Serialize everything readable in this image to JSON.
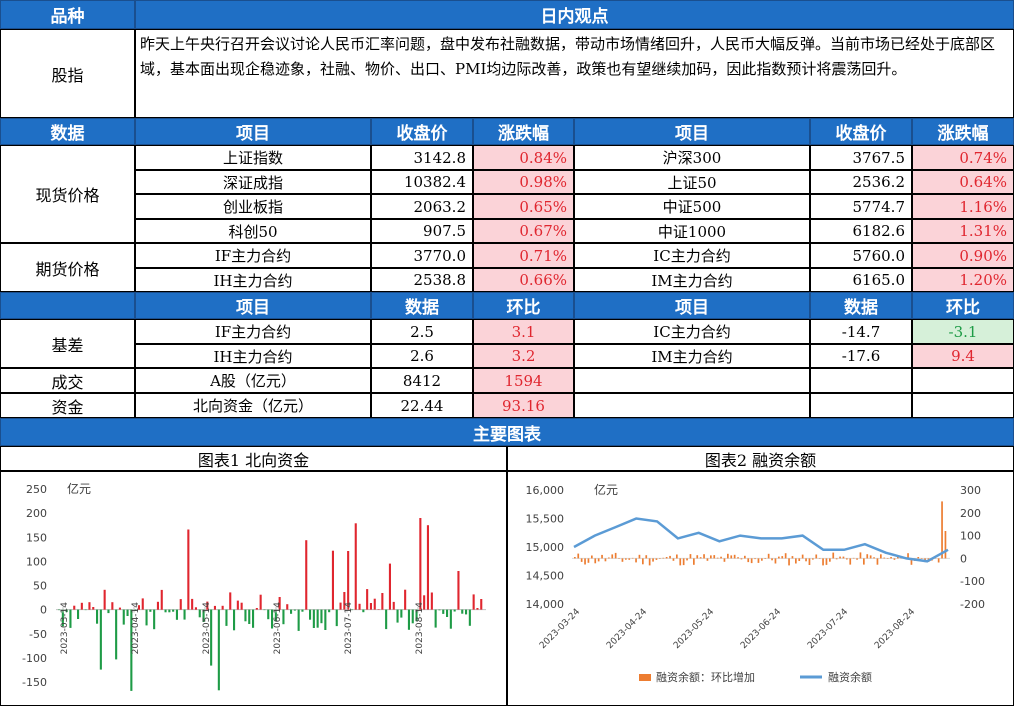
{
  "header": {
    "col1": "品种",
    "col2": "日内观点"
  },
  "index_row": {
    "label": "股指",
    "text": "昨天上午央行召开会议讨论人民币汇率问题，盘中发布社融数据，带动市场情绪回升，人民币大幅反弹。当前市场已经处于底部区域，基本面出现企稳迹象，社融、物价、出口、PMI均边际改善，政策也有望继续加码，因此指数预计将震荡回升。"
  },
  "price_header": {
    "data": "数据",
    "item": "项目",
    "close": "收盘价",
    "chg": "涨跌幅",
    "item2": "项目",
    "close2": "收盘价",
    "chg2": "涨跌幅"
  },
  "spot": {
    "label": "现货价格",
    "rows": [
      {
        "name": "上证指数",
        "close": "3142.8",
        "chg": "0.84%",
        "name2": "沪深300",
        "close2": "3767.5",
        "chg2": "0.74%"
      },
      {
        "name": "深证成指",
        "close": "10382.4",
        "chg": "0.98%",
        "name2": "上证50",
        "close2": "2536.2",
        "chg2": "0.64%"
      },
      {
        "name": "创业板指",
        "close": "2063.2",
        "chg": "0.65%",
        "name2": "中证500",
        "close2": "5774.7",
        "chg2": "1.16%"
      },
      {
        "name": "科创50",
        "close": "907.5",
        "chg": "0.67%",
        "name2": "中证1000",
        "close2": "6182.6",
        "chg2": "1.31%"
      }
    ]
  },
  "futures": {
    "label": "期货价格",
    "rows": [
      {
        "name": "IF主力合约",
        "close": "3770.0",
        "chg": "0.71%",
        "name2": "IC主力合约",
        "close2": "5760.0",
        "chg2": "0.90%"
      },
      {
        "name": "IH主力合约",
        "close": "2538.8",
        "chg": "0.66%",
        "name2": "IM主力合约",
        "close2": "6165.0",
        "chg2": "1.20%"
      }
    ]
  },
  "basis_header": {
    "item": "项目",
    "data": "数据",
    "chg": "环比",
    "item2": "项目",
    "data2": "数据",
    "chg2": "环比"
  },
  "basis": {
    "label": "基差",
    "rows": [
      {
        "name": "IF主力合约",
        "val": "2.5",
        "chg": "3.1",
        "name2": "IC主力合约",
        "val2": "-14.7",
        "chg2": "-3.1"
      },
      {
        "name": "IH主力合约",
        "val": "2.6",
        "chg": "3.2",
        "name2": "IM主力合约",
        "val2": "-17.6",
        "chg2": "9.4"
      }
    ]
  },
  "turnover": {
    "label": "成交",
    "name": "A股（亿元）",
    "val": "8412",
    "chg": "1594"
  },
  "capital": {
    "label": "资金",
    "name": "北向资金（亿元）",
    "val": "22.44",
    "chg": "93.16"
  },
  "charts_header": "主要图表",
  "chart1": {
    "title": "图表1  北向资金",
    "unit": "亿元",
    "yticks": [
      "250",
      "200",
      "150",
      "100",
      "50",
      "0",
      "-50",
      "-100",
      "-150"
    ],
    "xticks": [
      "2023-03-14",
      "2023-04-14",
      "2023-05-14",
      "2023-06-14",
      "2023-07-14",
      "2023-08-14"
    ],
    "up_color": "#e0262f",
    "down_color": "#1e9b46"
  },
  "chart2": {
    "title": "图表2  融资余额",
    "unit": "亿元",
    "yticks_left": [
      "16,000",
      "15,500",
      "15,000",
      "14,500",
      "14,000"
    ],
    "yticks_right": [
      "300",
      "200",
      "100",
      "0",
      "-100",
      "-200"
    ],
    "xticks": [
      "2023-03-24",
      "2023-04-24",
      "2023-05-24",
      "2023-06-24",
      "2023-07-24",
      "2023-08-24"
    ],
    "legend_bar": "融资余额：环比增加",
    "legend_line": "融资余额",
    "bar_color": "#ed7d31",
    "line_color": "#5b9bd5"
  },
  "chart_data": {
    "type": "line",
    "title": "图表2  融资余额",
    "ylabel": "亿元",
    "ylim": [
      14000,
      16000
    ],
    "y2lim": [
      -200,
      300
    ],
    "x": [
      "2023-03-24",
      "2023-04-24",
      "2023-05-24",
      "2023-06-24",
      "2023-07-24",
      "2023-08-24"
    ],
    "series": [
      {
        "name": "融资余额",
        "values": [
          15000,
          15500,
          15100,
          15200,
          14900,
          14850
        ]
      },
      {
        "name": "融资余额：环比增加",
        "values": [
          0,
          0,
          0,
          0,
          0,
          250
        ]
      }
    ]
  }
}
